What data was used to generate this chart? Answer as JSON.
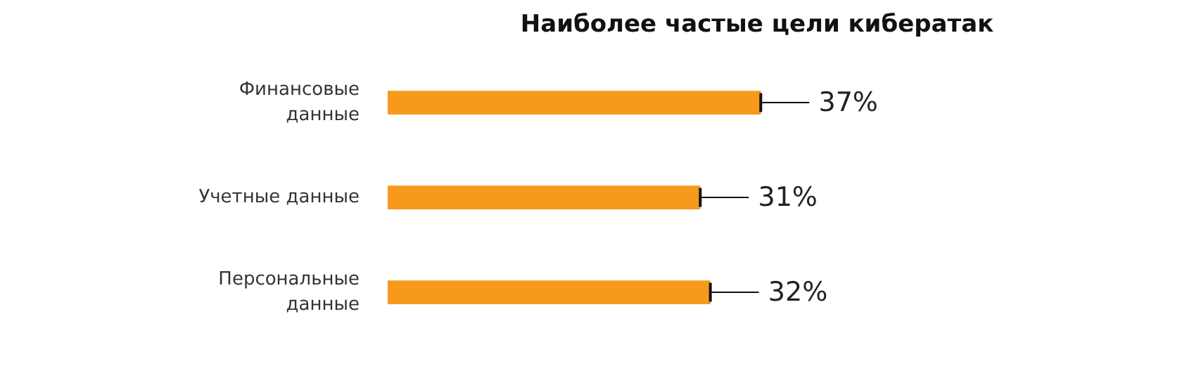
{
  "chart_data": {
    "type": "bar",
    "orientation": "horizontal",
    "title": "Наиболее частые цели кибератак",
    "categories": [
      "Финансовые\nданные",
      "Учетные данные",
      "Персональные\nданные"
    ],
    "values": [
      37,
      31,
      32
    ],
    "value_labels": [
      "37%",
      "31%",
      "32%"
    ],
    "color": "#f7991c"
  }
}
